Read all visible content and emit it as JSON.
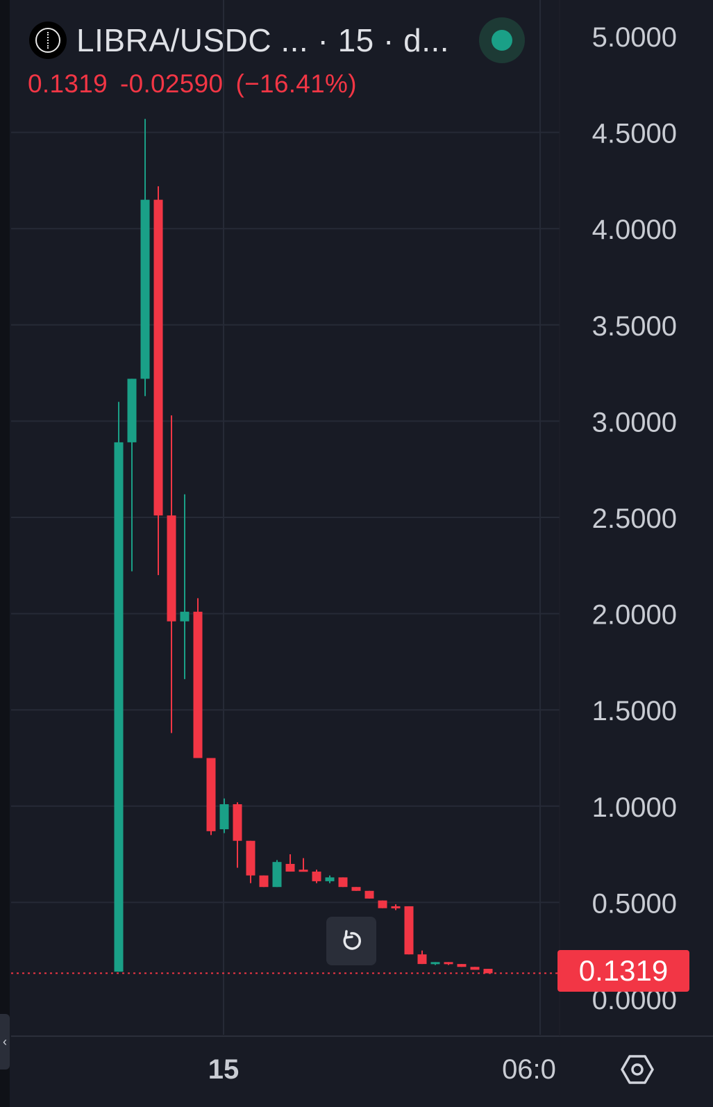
{
  "header": {
    "symbol_title": "LIBRA/USDC ...  · 15 · d...",
    "logo_icon": "libra-logo-icon",
    "live_status_color": "#1aa087"
  },
  "quote": {
    "last": "0.1319",
    "change": "-0.02590",
    "change_pct": "(−16.41%)",
    "color": "#f23645"
  },
  "price_badge": "0.1319",
  "reset_button_icon": "reset-icon",
  "settings_button_icon": "settings-icon",
  "chart_data": {
    "type": "candlestick",
    "interval": "15",
    "y_axis": {
      "ticks": [
        "5.0000",
        "4.5000",
        "4.0000",
        "3.5000",
        "3.0000",
        "2.5000",
        "2.0000",
        "1.5000",
        "1.0000",
        "0.5000",
        "0.0000"
      ],
      "range": [
        0,
        5
      ],
      "side": "right"
    },
    "x_axis": {
      "ticks": [
        "15",
        "06:0"
      ]
    },
    "grid": true,
    "last_price": 0.1319,
    "up_color": "#1aa087",
    "down_color": "#f23645",
    "candles": [
      {
        "o": 0.14,
        "h": 3.1,
        "l": 0.14,
        "c": 2.89
      },
      {
        "o": 2.89,
        "h": 3.22,
        "l": 2.22,
        "c": 3.22
      },
      {
        "o": 3.22,
        "h": 4.57,
        "l": 3.13,
        "c": 4.15
      },
      {
        "o": 4.15,
        "h": 4.22,
        "l": 2.2,
        "c": 2.51
      },
      {
        "o": 2.51,
        "h": 3.03,
        "l": 1.38,
        "c": 1.96
      },
      {
        "o": 1.96,
        "h": 2.62,
        "l": 1.66,
        "c": 2.01
      },
      {
        "o": 2.01,
        "h": 2.08,
        "l": 1.25,
        "c": 1.25
      },
      {
        "o": 1.25,
        "h": 1.25,
        "l": 0.85,
        "c": 0.87
      },
      {
        "o": 0.88,
        "h": 1.04,
        "l": 0.86,
        "c": 1.01
      },
      {
        "o": 1.01,
        "h": 1.02,
        "l": 0.68,
        "c": 0.82
      },
      {
        "o": 0.82,
        "h": 0.82,
        "l": 0.6,
        "c": 0.64
      },
      {
        "o": 0.64,
        "h": 0.64,
        "l": 0.58,
        "c": 0.58
      },
      {
        "o": 0.58,
        "h": 0.72,
        "l": 0.58,
        "c": 0.71
      },
      {
        "o": 0.7,
        "h": 0.75,
        "l": 0.66,
        "c": 0.66
      },
      {
        "o": 0.67,
        "h": 0.73,
        "l": 0.66,
        "c": 0.66
      },
      {
        "o": 0.66,
        "h": 0.67,
        "l": 0.6,
        "c": 0.61
      },
      {
        "o": 0.61,
        "h": 0.64,
        "l": 0.6,
        "c": 0.63
      },
      {
        "o": 0.63,
        "h": 0.63,
        "l": 0.58,
        "c": 0.58
      },
      {
        "o": 0.58,
        "h": 0.58,
        "l": 0.56,
        "c": 0.56
      },
      {
        "o": 0.56,
        "h": 0.56,
        "l": 0.52,
        "c": 0.52
      },
      {
        "o": 0.51,
        "h": 0.51,
        "l": 0.47,
        "c": 0.47
      },
      {
        "o": 0.48,
        "h": 0.49,
        "l": 0.46,
        "c": 0.47
      },
      {
        "o": 0.48,
        "h": 0.48,
        "l": 0.23,
        "c": 0.23
      },
      {
        "o": 0.23,
        "h": 0.25,
        "l": 0.18,
        "c": 0.18
      },
      {
        "o": 0.18,
        "h": 0.19,
        "l": 0.175,
        "c": 0.19
      },
      {
        "o": 0.19,
        "h": 0.19,
        "l": 0.175,
        "c": 0.18
      },
      {
        "o": 0.18,
        "h": 0.18,
        "l": 0.165,
        "c": 0.165
      },
      {
        "o": 0.165,
        "h": 0.165,
        "l": 0.15,
        "c": 0.15
      },
      {
        "o": 0.155,
        "h": 0.155,
        "l": 0.132,
        "c": 0.132
      }
    ]
  }
}
